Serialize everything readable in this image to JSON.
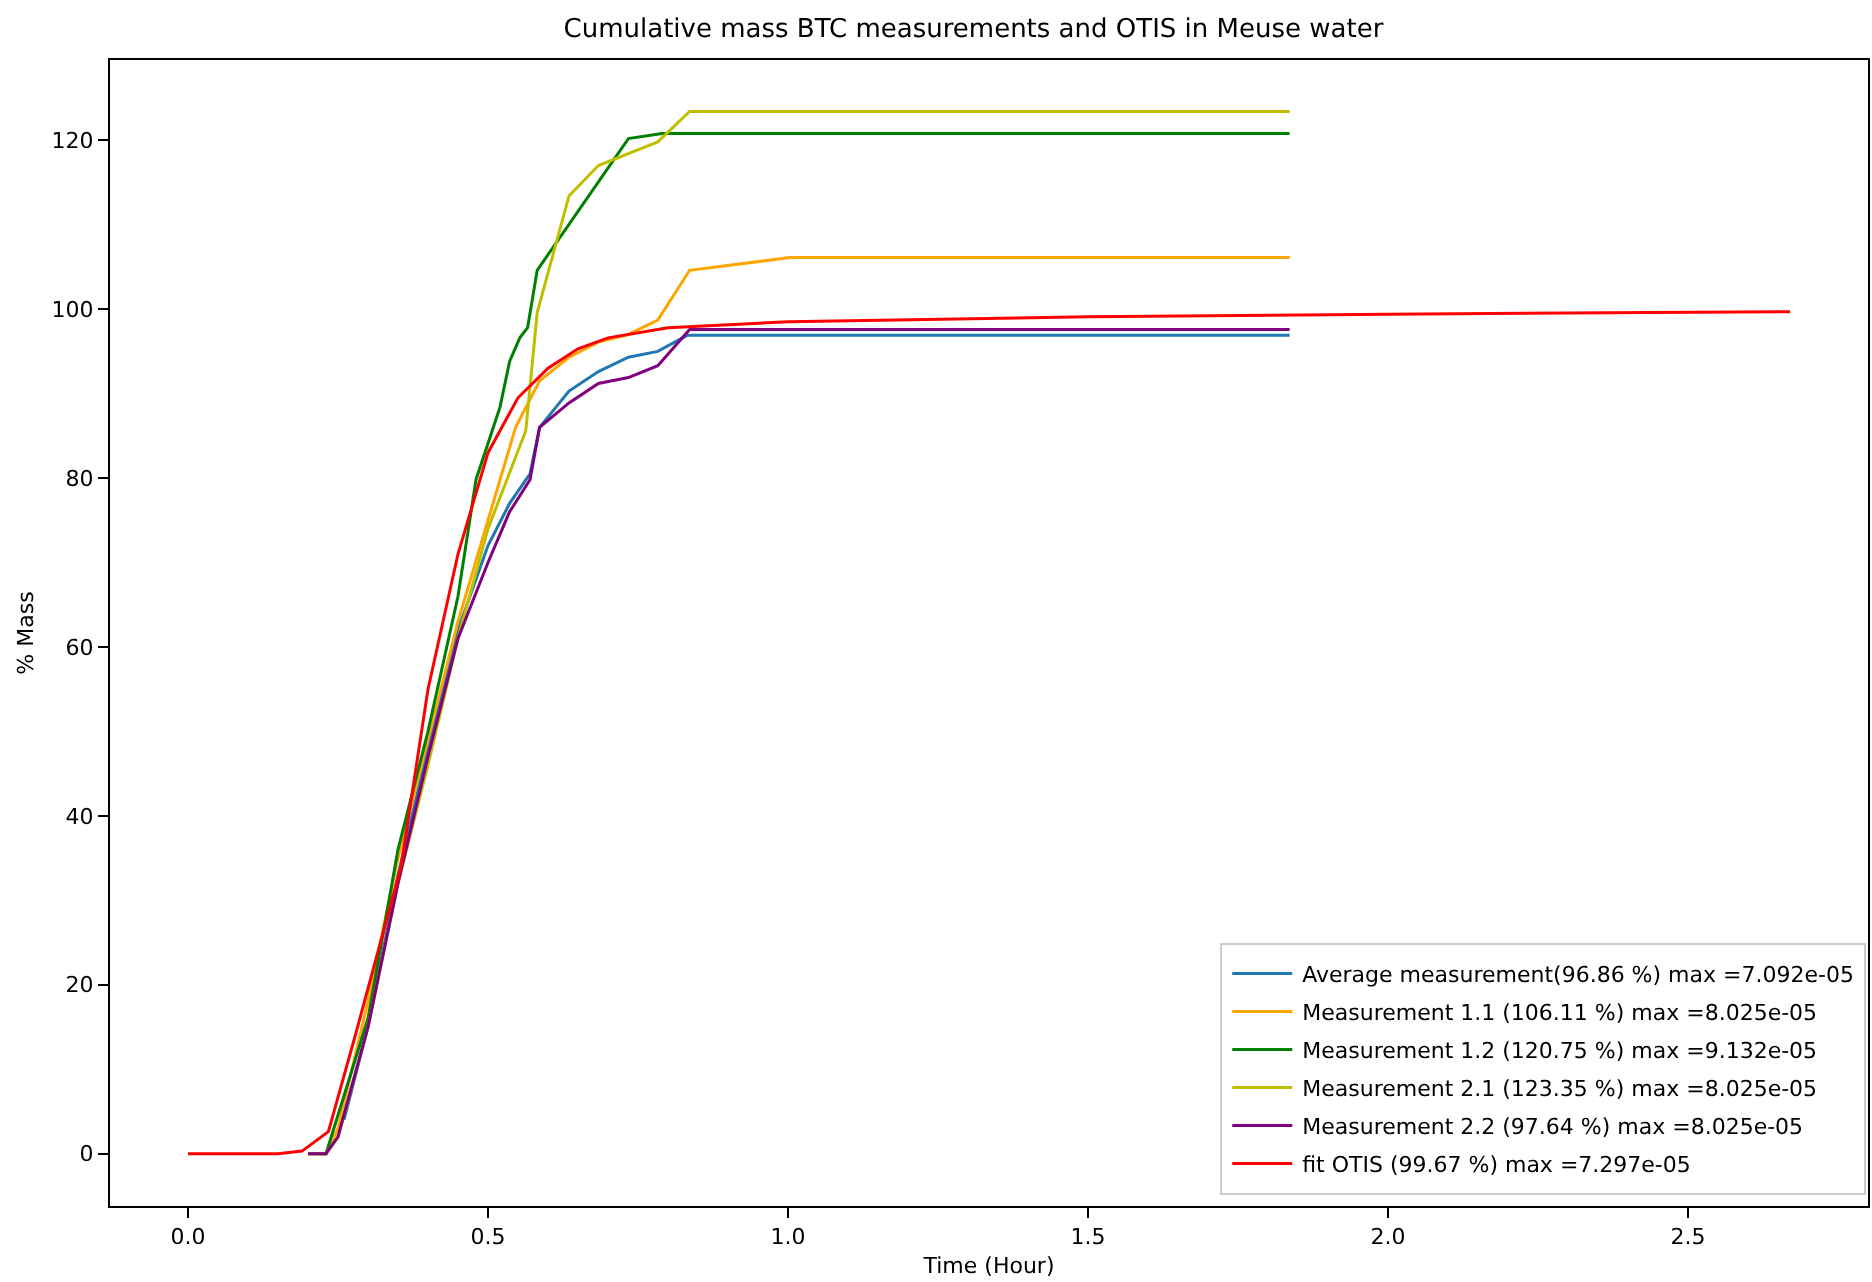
{
  "chart_data": {
    "type": "line",
    "title": "Cumulative mass BTC measurements and OTIS in Meuse water",
    "xlabel": "Time (Hour)",
    "ylabel": "% Mass",
    "xlim": [
      -0.13,
      2.8
    ],
    "ylim": [
      -6.2,
      129.5
    ],
    "xticks": [
      {
        "value": 0,
        "label": "0.0"
      },
      0.5,
      {
        "value": 1,
        "label": "1.0"
      },
      1.5,
      {
        "value": 2,
        "label": "2.0"
      },
      2.5
    ],
    "yticks": [
      0,
      20,
      40,
      60,
      80,
      100,
      120
    ],
    "legend": "bottom right",
    "marker": "none",
    "line_style": "solid",
    "series": [
      {
        "name": "Average measurement(96.86 %) max =7.092e-05",
        "color": "#1f77b4",
        "x": [
          0.26,
          0.3,
          0.35,
          0.4,
          0.45,
          0.5,
          0.536,
          0.57,
          0.586,
          0.635,
          0.684,
          0.734,
          0.783,
          0.832,
          1.836
        ],
        "values": [
          4,
          15,
          33,
          48,
          62,
          72,
          77,
          80.5,
          86,
          90.3,
          92.6,
          94.3,
          95,
          96.9,
          96.9
        ]
      },
      {
        "name": "Measurement 1.1 (106.11 %) max =8.025e-05",
        "color": "#ffa500",
        "x": [
          0.2,
          0.23,
          0.25,
          0.3,
          0.35,
          0.4,
          0.45,
          0.5,
          0.546,
          0.586,
          0.635,
          0.684,
          0.734,
          0.783,
          0.836,
          1.003,
          1.836
        ],
        "values": [
          0,
          0,
          3,
          18,
          35,
          49,
          63,
          75,
          86,
          91.5,
          94.3,
          96.1,
          97,
          98.7,
          104.6,
          106.1,
          106.1
        ]
      },
      {
        "name": "Measurement 1.2 (120.75 %) max =9.132e-05",
        "color": "#008000",
        "x": [
          0.2,
          0.23,
          0.3,
          0.35,
          0.4,
          0.45,
          0.48,
          0.52,
          0.536,
          0.553,
          0.566,
          0.582,
          0.734,
          0.79,
          1.836
        ],
        "values": [
          0,
          0,
          16,
          36,
          50,
          66,
          79.8,
          88.4,
          93.8,
          96.6,
          97.8,
          104.6,
          120.2,
          120.8,
          120.8
        ]
      },
      {
        "name": "Measurement 2.1 (123.35 %) max =8.025e-05",
        "color": "#bfbf00",
        "x": [
          0.2,
          0.23,
          0.25,
          0.3,
          0.35,
          0.4,
          0.45,
          0.5,
          0.563,
          0.582,
          0.635,
          0.684,
          0.783,
          0.836,
          1.836
        ],
        "values": [
          0,
          0,
          2,
          15,
          32,
          46,
          61,
          74,
          85.6,
          99.6,
          113.4,
          117,
          119.8,
          123.4,
          123.4
        ]
      },
      {
        "name": "Measurement 2.2 (97.64 %) max =8.025e-05",
        "color": "#800080",
        "x": [
          0.2,
          0.23,
          0.25,
          0.3,
          0.35,
          0.4,
          0.45,
          0.5,
          0.536,
          0.57,
          0.586,
          0.635,
          0.684,
          0.734,
          0.783,
          0.836,
          1.836
        ],
        "values": [
          0,
          0,
          2,
          15,
          32,
          47,
          61,
          70,
          76,
          79.8,
          86,
          88.9,
          91.2,
          91.9,
          93.3,
          97.6,
          97.6
        ]
      },
      {
        "name": "fit OTIS (99.67 %) max =7.297e-05",
        "color": "#ff0000",
        "x": [
          0,
          0.15,
          0.19,
          0.234,
          0.28,
          0.355,
          0.4,
          0.45,
          0.5,
          0.55,
          0.6,
          0.65,
          0.7,
          0.8,
          1.0,
          1.5,
          2.0,
          2.67
        ],
        "values": [
          0,
          0,
          0.3,
          2.6,
          14.3,
          34,
          55,
          71,
          83,
          89.5,
          93,
          95.3,
          96.6,
          97.8,
          98.5,
          99.1,
          99.4,
          99.7
        ]
      }
    ]
  }
}
